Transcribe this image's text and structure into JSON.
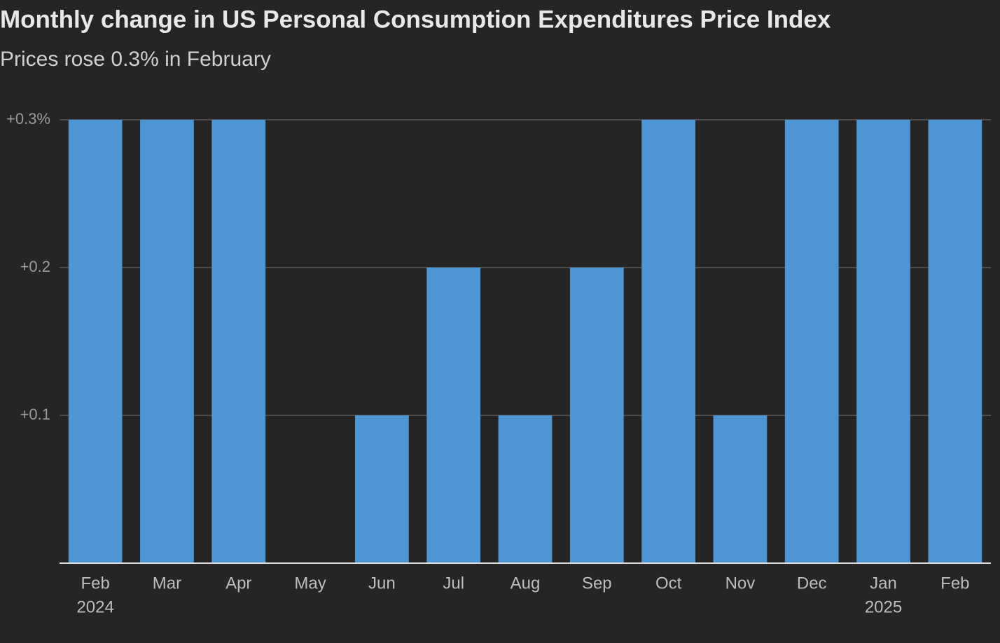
{
  "chart_data": {
    "type": "bar",
    "title": "Monthly change in US Personal Consumption Expenditures Price Index",
    "subtitle": "Prices rose 0.3% in February",
    "categories": [
      "Feb",
      "Mar",
      "Apr",
      "May",
      "Jun",
      "Jul",
      "Aug",
      "Sep",
      "Oct",
      "Nov",
      "Dec",
      "Jan",
      "Feb"
    ],
    "years": [
      "2024",
      null,
      null,
      null,
      null,
      null,
      null,
      null,
      null,
      null,
      null,
      "2025",
      null
    ],
    "values": [
      0.3,
      0.3,
      0.3,
      0,
      0.1,
      0.2,
      0.1,
      0.2,
      0.3,
      0.1,
      0.3,
      0.3,
      0.3
    ],
    "color": "#4e96d3",
    "ylim": [
      0,
      0.3
    ],
    "yticks": [
      {
        "value": 0.1,
        "label": "+0.1"
      },
      {
        "value": 0.2,
        "label": "+0.2"
      },
      {
        "value": 0.3,
        "label": "+0.3%"
      }
    ],
    "grid": true
  }
}
